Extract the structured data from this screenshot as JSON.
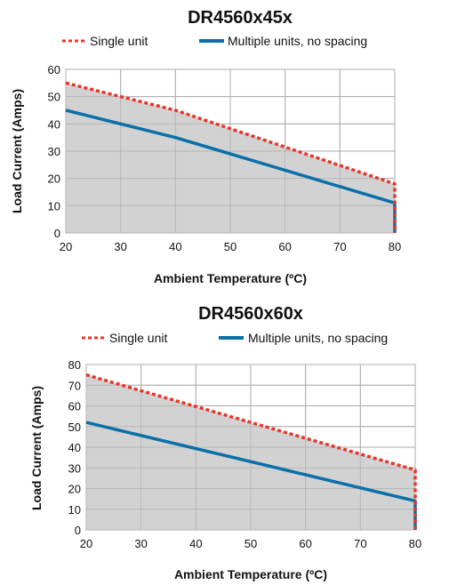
{
  "chart_data": [
    {
      "type": "line",
      "title": "DR4560x45x",
      "xlabel": "Ambient Temperature (ºC)",
      "ylabel": "Load Current (Amps)",
      "xlim": [
        20,
        80
      ],
      "ylim": [
        0,
        60
      ],
      "x_ticks": [
        20,
        30,
        40,
        50,
        60,
        70,
        80
      ],
      "y_ticks": [
        0,
        10,
        20,
        30,
        40,
        50,
        60
      ],
      "grid": true,
      "legend_position": "top",
      "series": [
        {
          "name": "Single unit",
          "color": "#e8352b",
          "style": "dotted",
          "x": [
            20,
            40,
            80,
            80
          ],
          "y": [
            55,
            45,
            18,
            0
          ]
        },
        {
          "name": "Multiple units, no spacing",
          "color": "#0a6fa8",
          "style": "solid",
          "x": [
            20,
            40,
            80,
            80
          ],
          "y": [
            45,
            35,
            11,
            0
          ]
        }
      ]
    },
    {
      "type": "line",
      "title": "DR4560x60x",
      "xlabel": "Ambient Temperature (ºC)",
      "ylabel": "Load Current (Amps)",
      "xlim": [
        20,
        80
      ],
      "ylim": [
        0,
        80
      ],
      "x_ticks": [
        20,
        30,
        40,
        50,
        60,
        70,
        80
      ],
      "y_ticks": [
        0,
        10,
        20,
        30,
        40,
        50,
        60,
        70,
        80
      ],
      "grid": true,
      "legend_position": "top",
      "series": [
        {
          "name": "Single unit",
          "color": "#e8352b",
          "style": "dotted",
          "x": [
            20,
            80,
            80
          ],
          "y": [
            75,
            29,
            0
          ]
        },
        {
          "name": "Multiple units, no spacing",
          "color": "#0a6fa8",
          "style": "solid",
          "x": [
            20,
            80,
            80
          ],
          "y": [
            52,
            14,
            0
          ]
        }
      ]
    }
  ]
}
